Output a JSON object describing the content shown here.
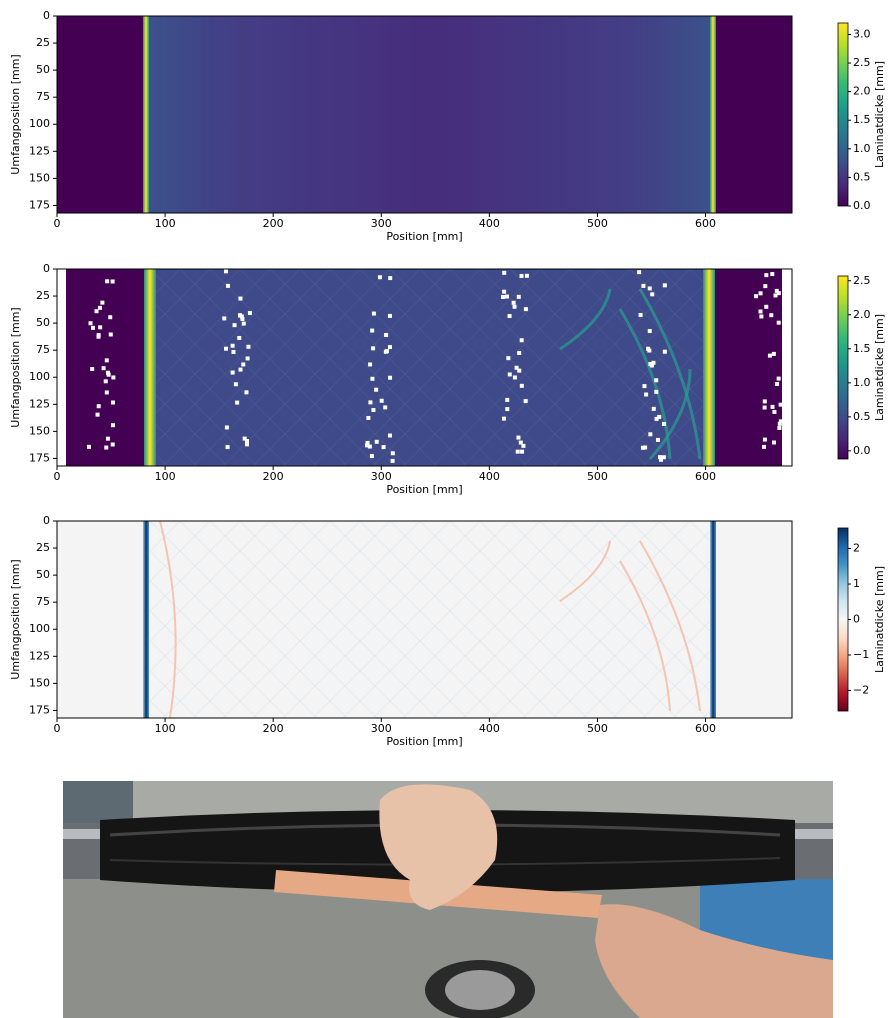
{
  "chart_data": [
    {
      "type": "heatmap",
      "xlabel": "Position [mm]",
      "ylabel": "Umfangposition [mm]",
      "colorbar_label": "Laminatdicke [mm]",
      "colormap": "viridis",
      "xlim": [
        0,
        680
      ],
      "ylim": [
        0,
        182
      ],
      "y_inverted": true,
      "xticks": [
        0,
        100,
        200,
        300,
        400,
        500,
        600
      ],
      "yticks": [
        0,
        25,
        50,
        75,
        100,
        125,
        150,
        175
      ],
      "clim": [
        0,
        3.2
      ],
      "cticks": [
        {
          "value": 0,
          "label": "0.0"
        },
        {
          "value": 0.5,
          "label": "0.5"
        },
        {
          "value": 1,
          "label": "1.0"
        },
        {
          "value": 1.5,
          "label": "1.5"
        },
        {
          "value": 2,
          "label": "2.0"
        },
        {
          "value": 2.5,
          "label": "2.5"
        },
        {
          "value": 3,
          "label": "3.0"
        }
      ]
    },
    {
      "type": "heatmap",
      "xlabel": "Position [mm]",
      "ylabel": "Umfangposition [mm]",
      "colorbar_label": "Laminatdicke [mm]",
      "colormap": "viridis",
      "xlim": [
        0,
        680
      ],
      "ylim": [
        0,
        182
      ],
      "y_inverted": true,
      "xticks": [
        0,
        100,
        200,
        300,
        400,
        500,
        600
      ],
      "yticks": [
        0,
        25,
        50,
        75,
        100,
        125,
        150,
        175
      ],
      "clim": [
        -0.12,
        2.57
      ],
      "cticks": [
        {
          "value": 0,
          "label": "0.0"
        },
        {
          "value": 0.5,
          "label": "0.5"
        },
        {
          "value": 1,
          "label": "1.0"
        },
        {
          "value": 1.5,
          "label": "1.5"
        },
        {
          "value": 2,
          "label": "2.0"
        },
        {
          "value": 2.5,
          "label": "2.5"
        }
      ]
    },
    {
      "type": "heatmap",
      "xlabel": "Position [mm]",
      "ylabel": "Umfangposition [mm]",
      "colorbar_label": "Laminatdicke [mm]",
      "colormap": "RdBu",
      "xlim": [
        0,
        680
      ],
      "ylim": [
        0,
        182
      ],
      "y_inverted": true,
      "xticks": [
        0,
        100,
        200,
        300,
        400,
        500,
        600
      ],
      "yticks": [
        0,
        25,
        50,
        75,
        100,
        125,
        150,
        175
      ],
      "clim": [
        -2.58,
        2.58
      ],
      "cticks": [
        {
          "value": -2,
          "label": "−2"
        },
        {
          "value": -1,
          "label": "−1"
        },
        0,
        1,
        2
      ]
    }
  ]
}
